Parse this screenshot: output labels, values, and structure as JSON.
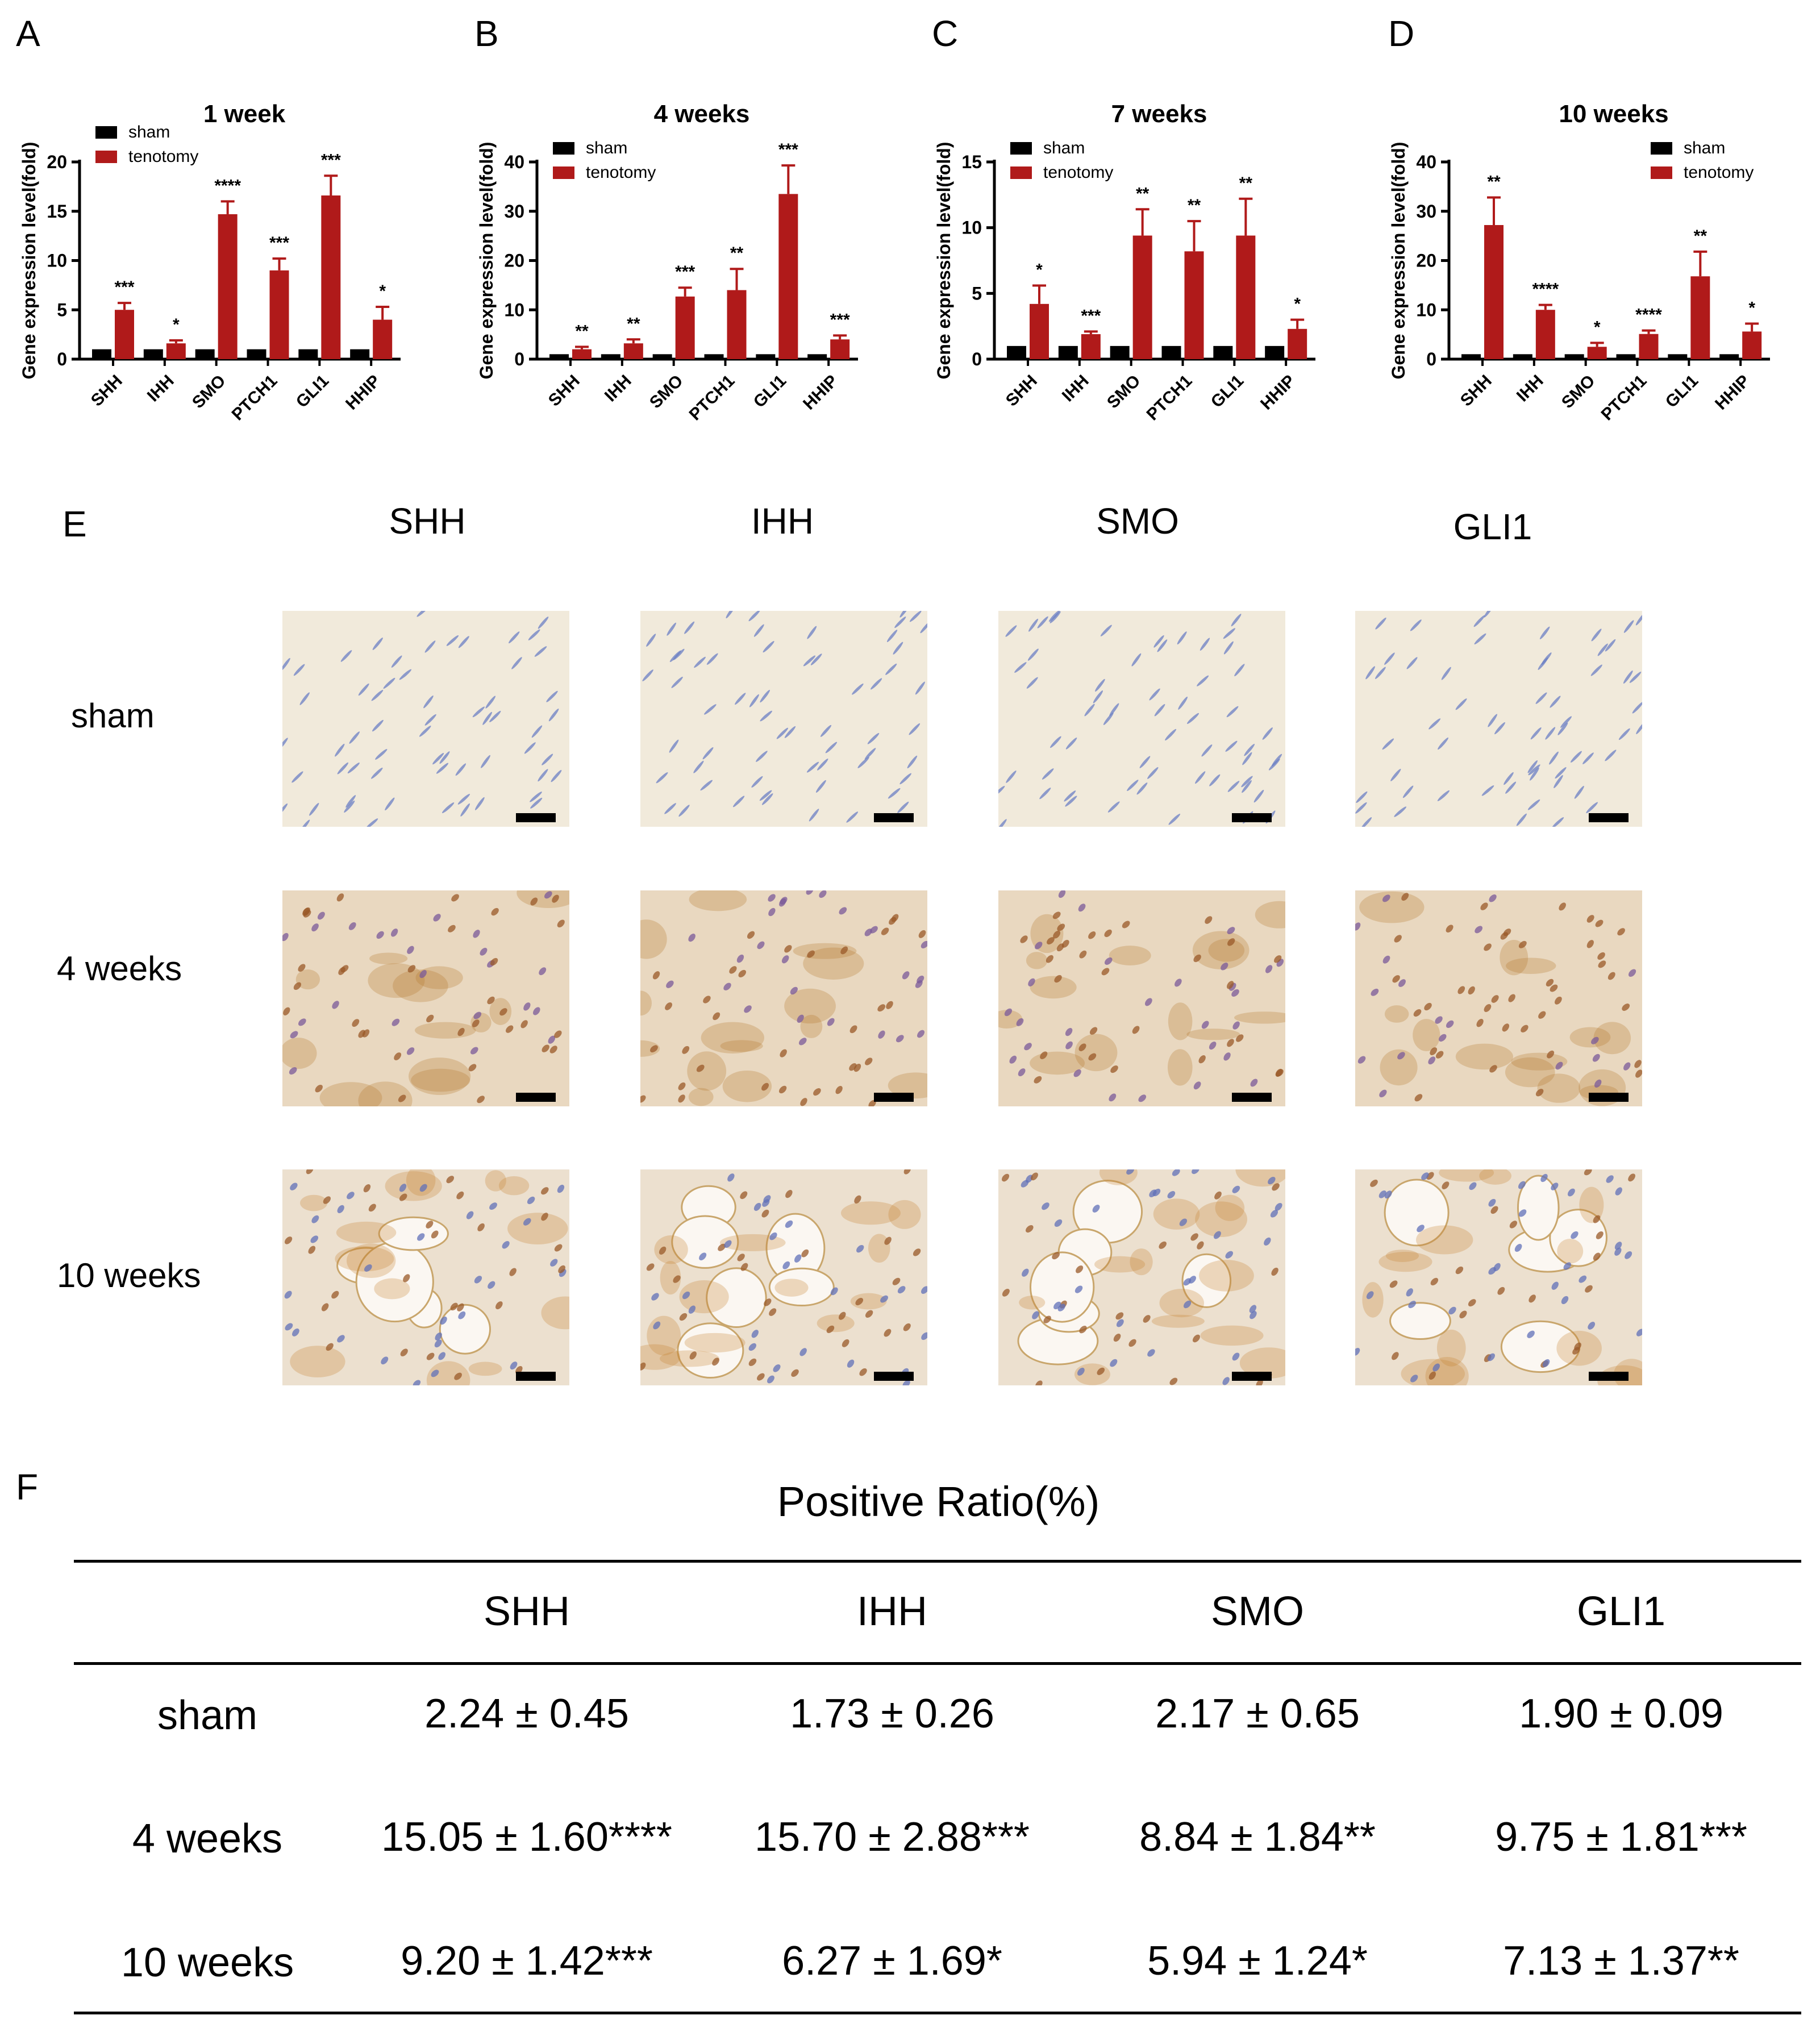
{
  "panel_letters": [
    "A",
    "B",
    "C",
    "D",
    "E",
    "F"
  ],
  "legend": {
    "sham": "sham",
    "tenotomy": "tenotomy"
  },
  "colors": {
    "sham": "#000000",
    "tenotomy": "#b01a1a"
  },
  "chart_data": [
    {
      "type": "bar",
      "title": "1 week",
      "ylabel": "Gene expression level(fold)",
      "categories": [
        "SHH",
        "IHH",
        "SMO",
        "PTCH1",
        "GLI1",
        "HHIP"
      ],
      "ylim": [
        0,
        20
      ],
      "yticks": [
        "0",
        "5",
        "10",
        "15",
        "20"
      ],
      "legend_position": "top-left",
      "series": [
        {
          "name": "sham",
          "values": [
            1,
            1,
            1,
            1,
            1,
            1
          ],
          "errors": [
            0,
            0,
            0,
            0,
            0,
            0
          ]
        },
        {
          "name": "tenotomy",
          "values": [
            5.0,
            1.6,
            14.7,
            9.0,
            16.6,
            4.0
          ],
          "errors": [
            0.7,
            0.3,
            1.3,
            1.2,
            2.0,
            1.3
          ]
        }
      ],
      "significance": [
        "***",
        "*",
        "****",
        "***",
        "***",
        "*"
      ]
    },
    {
      "type": "bar",
      "title": "4 weeks",
      "ylabel": "Gene expression level(fold)",
      "categories": [
        "SHH",
        "IHH",
        "SMO",
        "PTCH1",
        "GLI1",
        "HHIP"
      ],
      "ylim": [
        0,
        40
      ],
      "yticks": [
        "0",
        "10",
        "20",
        "30",
        "40"
      ],
      "legend_position": "top-left",
      "series": [
        {
          "name": "sham",
          "values": [
            1,
            1,
            1,
            1,
            1,
            1
          ],
          "errors": [
            0,
            0,
            0,
            0,
            0,
            0
          ]
        },
        {
          "name": "tenotomy",
          "values": [
            2.0,
            3.2,
            12.7,
            14.0,
            33.5,
            4.0
          ],
          "errors": [
            0.5,
            0.8,
            1.8,
            4.3,
            5.8,
            0.8
          ]
        }
      ],
      "significance": [
        "**",
        "**",
        "***",
        "**",
        "***",
        "***"
      ]
    },
    {
      "type": "bar",
      "title": "7 weeks",
      "ylabel": "Gene expression level(fold)",
      "categories": [
        "SHH",
        "IHH",
        "SMO",
        "PTCH1",
        "GLI1",
        "HHIP"
      ],
      "ylim": [
        0,
        15
      ],
      "yticks": [
        "0",
        "5",
        "10",
        "15"
      ],
      "legend_position": "top-left",
      "series": [
        {
          "name": "sham",
          "values": [
            1,
            1,
            1,
            1,
            1,
            1
          ],
          "errors": [
            0,
            0,
            0,
            0,
            0,
            0
          ]
        },
        {
          "name": "tenotomy",
          "values": [
            4.2,
            1.9,
            9.4,
            8.2,
            9.4,
            2.3
          ],
          "errors": [
            1.4,
            0.2,
            2.0,
            2.3,
            2.8,
            0.7
          ]
        }
      ],
      "significance": [
        "*",
        "***",
        "**",
        "**",
        "**",
        "*"
      ]
    },
    {
      "type": "bar",
      "title": "10 weeks",
      "ylabel": "Gene expression level(fold)",
      "categories": [
        "SHH",
        "IHH",
        "SMO",
        "PTCH1",
        "GLI1",
        "HHIP"
      ],
      "ylim": [
        0,
        40
      ],
      "yticks": [
        "0",
        "10",
        "20",
        "30",
        "40"
      ],
      "legend_position": "top-right",
      "series": [
        {
          "name": "sham",
          "values": [
            1,
            1,
            1,
            1,
            1,
            1
          ],
          "errors": [
            0,
            0,
            0,
            0,
            0,
            0
          ]
        },
        {
          "name": "tenotomy",
          "values": [
            27.2,
            10.0,
            2.5,
            5.1,
            16.8,
            5.6
          ],
          "errors": [
            5.6,
            1.0,
            0.8,
            0.7,
            5.0,
            1.6
          ]
        }
      ],
      "significance": [
        "**",
        "****",
        "*",
        "****",
        "**",
        "*"
      ]
    }
  ],
  "ihc": {
    "columns": [
      "SHH",
      "IHH",
      "SMO",
      "GLI1"
    ],
    "rows": [
      "sham",
      "4 weeks",
      "10 weeks"
    ]
  },
  "table": {
    "title": "Positive Ratio(%)",
    "columns": [
      "SHH",
      "IHH",
      "SMO",
      "GLI1"
    ],
    "rows": [
      {
        "label": "sham",
        "cells": [
          "2.24 ± 0.45",
          "1.73 ± 0.26",
          "2.17 ± 0.65",
          "1.90 ± 0.09"
        ]
      },
      {
        "label": "4 weeks",
        "cells": [
          "15.05 ± 1.60****",
          "15.70 ± 2.88***",
          "8.84 ± 1.84**",
          "9.75 ± 1.81***"
        ]
      },
      {
        "label": "10 weeks",
        "cells": [
          "9.20 ± 1.42***",
          "6.27 ± 1.69*",
          "5.94 ± 1.24*",
          "7.13 ± 1.37**"
        ]
      }
    ]
  }
}
